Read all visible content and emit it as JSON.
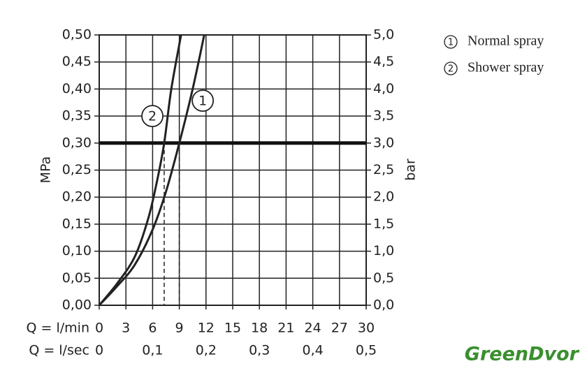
{
  "chart_data": {
    "type": "line",
    "y_label": "MPa",
    "y2_label": "bar",
    "x_label": "Q = l/min",
    "x2_label": "Q = l/sec",
    "series": [
      {
        "name": "Normal spray",
        "marker": "1",
        "color": "#222222",
        "x": [
          0,
          2,
          4,
          6,
          7.5,
          9,
          10.5,
          11.8
        ],
        "values": [
          0,
          0.035,
          0.075,
          0.14,
          0.21,
          0.3,
          0.4,
          0.5
        ]
      },
      {
        "name": "Shower spray",
        "marker": "2",
        "color": "#222222",
        "x": [
          0,
          2,
          4,
          5.5,
          6.5,
          7.3,
          8.1,
          9.2
        ],
        "values": [
          0,
          0.04,
          0.09,
          0.16,
          0.23,
          0.3,
          0.4,
          0.5
        ]
      }
    ],
    "xlim": [
      0,
      30
    ],
    "xticks": [
      0,
      3,
      6,
      9,
      12,
      15,
      18,
      21,
      24,
      27,
      30
    ],
    "x2lim": [
      0,
      0.5
    ],
    "x2ticks": [
      0,
      {
        "value": 0.1,
        "label": "0,1"
      },
      {
        "value": 0.2,
        "label": "0,2"
      },
      {
        "value": 0.3,
        "label": "0,3"
      },
      {
        "value": 0.4,
        "label": "0,4"
      },
      {
        "value": 0.5,
        "label": "0,5"
      }
    ],
    "ylim": [
      0,
      0.5
    ],
    "yticks": [
      {
        "value": 0,
        "label": "0,00"
      },
      {
        "value": 0.05,
        "label": "0,05"
      },
      {
        "value": 0.1,
        "label": "0,10"
      },
      {
        "value": 0.15,
        "label": "0,15"
      },
      {
        "value": 0.2,
        "label": "0,20"
      },
      {
        "value": 0.25,
        "label": "0,25"
      },
      {
        "value": 0.3,
        "label": "0,30"
      },
      {
        "value": 0.35,
        "label": "0,35"
      },
      {
        "value": 0.4,
        "label": "0,40"
      },
      {
        "value": 0.45,
        "label": "0,45"
      },
      {
        "value": 0.5,
        "label": "0,50"
      }
    ],
    "y2lim": [
      0,
      5
    ],
    "y2ticks": [
      {
        "value": 0,
        "label": "0,0"
      },
      {
        "value": 0.5,
        "label": "0,5"
      },
      {
        "value": 1,
        "label": "1,0"
      },
      {
        "value": 1.5,
        "label": "1,5"
      },
      {
        "value": 2,
        "label": "2,0"
      },
      {
        "value": 2.5,
        "label": "2,5"
      },
      {
        "value": 3,
        "label": "3,0"
      },
      {
        "value": 3.5,
        "label": "3,5"
      },
      {
        "value": 4,
        "label": "4,0"
      },
      {
        "value": 4.5,
        "label": "4,5"
      },
      {
        "value": 5,
        "label": "5,0"
      }
    ],
    "reference_y": 0.3,
    "reference_x": [
      7.3,
      9
    ],
    "grid": true,
    "watermark": "GreenDvor"
  }
}
